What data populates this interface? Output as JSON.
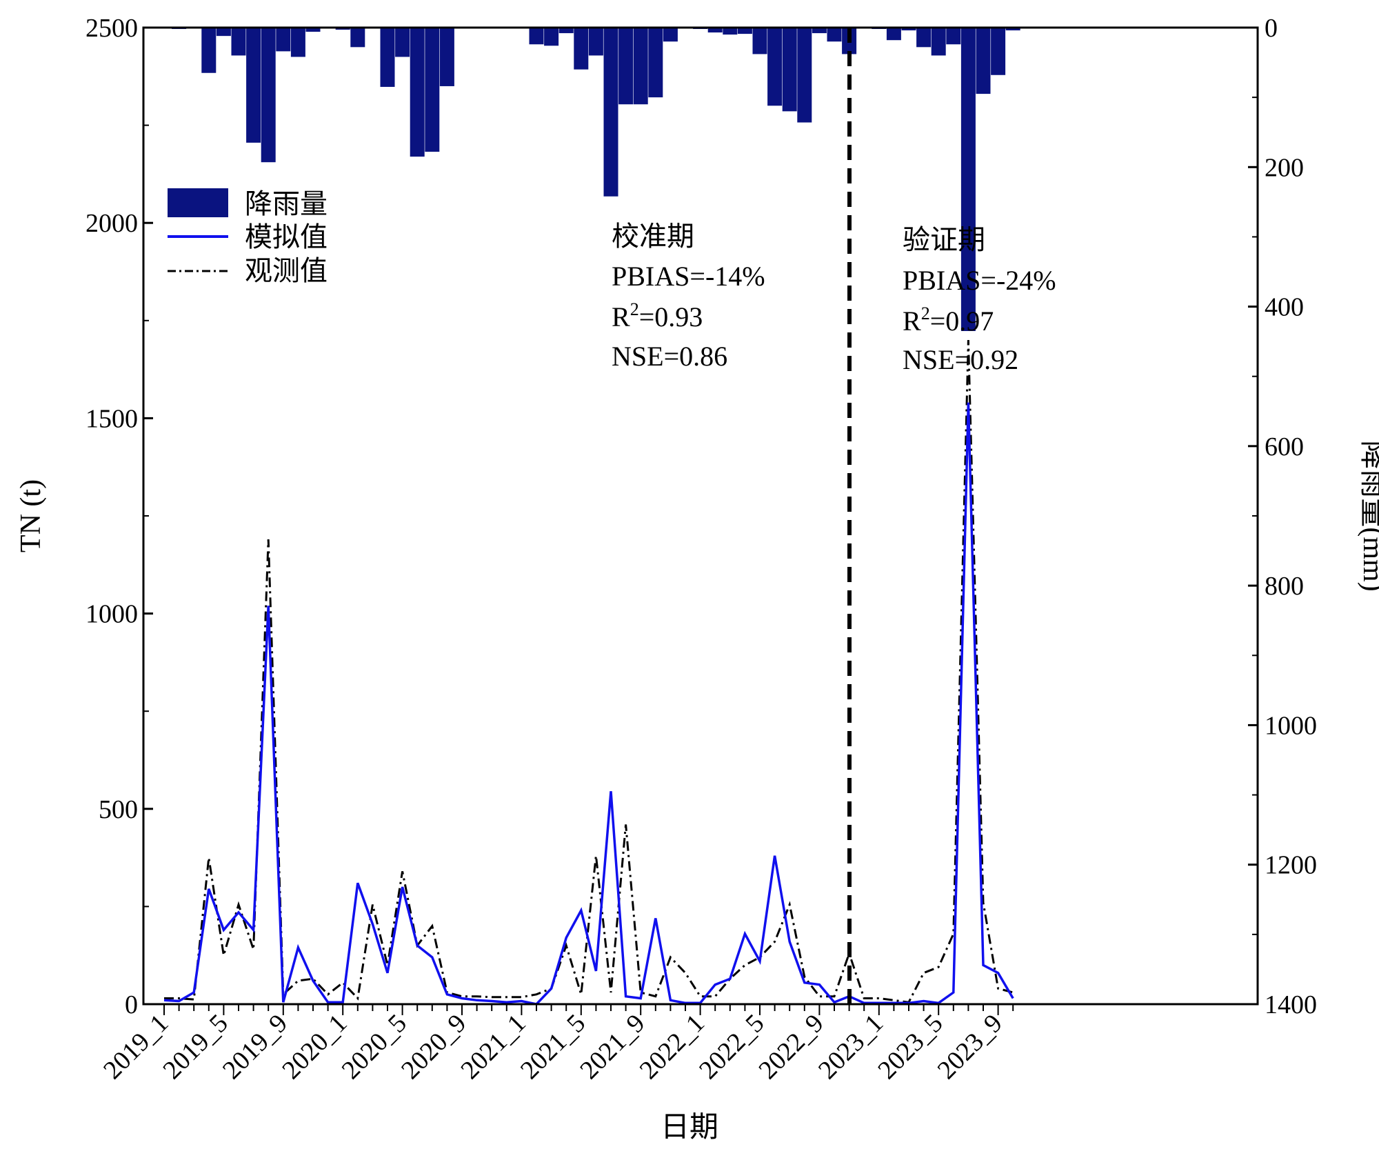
{
  "chart_data": {
    "type": "bar+line",
    "xlabel": "日期",
    "ylabel_left": "TN (t)",
    "ylabel_right": "降雨量(mm)",
    "ylim_left": [
      0,
      2500
    ],
    "yticks_left": [
      0,
      500,
      1000,
      1500,
      2000,
      2500
    ],
    "ylim_right": [
      0,
      1400
    ],
    "right_axis_inverted": true,
    "yticks_right": [
      0,
      200,
      400,
      600,
      800,
      1000,
      1200,
      1400
    ],
    "grid": false,
    "legend_position": "upper-left",
    "months": [
      "2019_1",
      "2019_2",
      "2019_3",
      "2019_4",
      "2019_5",
      "2019_6",
      "2019_7",
      "2019_8",
      "2019_9",
      "2019_10",
      "2019_11",
      "2019_12",
      "2020_1",
      "2020_2",
      "2020_3",
      "2020_4",
      "2020_5",
      "2020_6",
      "2020_7",
      "2020_8",
      "2020_9",
      "2020_10",
      "2020_11",
      "2020_12",
      "2021_1",
      "2021_2",
      "2021_3",
      "2021_4",
      "2021_5",
      "2021_6",
      "2021_7",
      "2021_8",
      "2021_9",
      "2021_10",
      "2021_11",
      "2021_12",
      "2022_1",
      "2022_2",
      "2022_3",
      "2022_4",
      "2022_5",
      "2022_6",
      "2022_7",
      "2022_8",
      "2022_9",
      "2022_10",
      "2022_11",
      "2022_12",
      "2023_1",
      "2023_2",
      "2023_3",
      "2023_4",
      "2023_5",
      "2023_6",
      "2023_7",
      "2023_8",
      "2023_9",
      "2023_10"
    ],
    "xtick_labels": [
      "2019_1",
      "2019_5",
      "2019_9",
      "2020_1",
      "2020_5",
      "2020_9",
      "2021_1",
      "2021_5",
      "2021_9",
      "2022_1",
      "2022_5",
      "2022_9",
      "2023_1",
      "2023_5",
      "2023_9"
    ],
    "series": [
      {
        "name": "降雨量",
        "kind": "bar",
        "axis": "right",
        "color": "#0a1380",
        "values": [
          0,
          2,
          0,
          65,
          12,
          40,
          165,
          193,
          34,
          42,
          6,
          0,
          3,
          28,
          0,
          85,
          42,
          185,
          178,
          84,
          0,
          0,
          0,
          0,
          0,
          24,
          26,
          8,
          60,
          40,
          242,
          110,
          110,
          100,
          20,
          0,
          2,
          7,
          10,
          9,
          38,
          112,
          120,
          136,
          8,
          20,
          38,
          0,
          2,
          18,
          4,
          28,
          40,
          24,
          435,
          95,
          68,
          4
        ]
      },
      {
        "name": "模拟值",
        "kind": "line",
        "axis": "left",
        "color": "#1010ee",
        "values": [
          10,
          8,
          30,
          295,
          190,
          235,
          190,
          1020,
          5,
          145,
          60,
          5,
          5,
          310,
          205,
          80,
          300,
          150,
          120,
          25,
          15,
          10,
          8,
          5,
          8,
          0,
          40,
          170,
          240,
          85,
          545,
          20,
          15,
          220,
          10,
          3,
          3,
          50,
          65,
          180,
          110,
          380,
          160,
          55,
          50,
          5,
          20,
          3,
          3,
          3,
          3,
          8,
          3,
          30,
          1540,
          100,
          80,
          15
        ]
      },
      {
        "name": "观测值",
        "kind": "line",
        "axis": "left",
        "color": "#000000",
        "values": [
          15,
          15,
          12,
          375,
          125,
          255,
          140,
          1190,
          25,
          60,
          65,
          25,
          55,
          15,
          255,
          100,
          340,
          150,
          200,
          30,
          20,
          20,
          18,
          18,
          18,
          25,
          40,
          150,
          25,
          380,
          30,
          460,
          30,
          20,
          120,
          80,
          20,
          20,
          65,
          100,
          120,
          160,
          255,
          70,
          20,
          20,
          130,
          15,
          15,
          10,
          5,
          80,
          95,
          180,
          1700,
          260,
          40,
          30
        ]
      }
    ],
    "annotations": [
      {
        "title": "校准期",
        "lines": [
          "PBIAS=-14%",
          "R",
          "=0.93",
          "NSE=0.86"
        ],
        "sup": "2"
      },
      {
        "title": "验证期",
        "lines": [
          "PBIAS=-24%",
          "R",
          "=0.97",
          "NSE=0.92"
        ],
        "sup": "2"
      }
    ]
  }
}
